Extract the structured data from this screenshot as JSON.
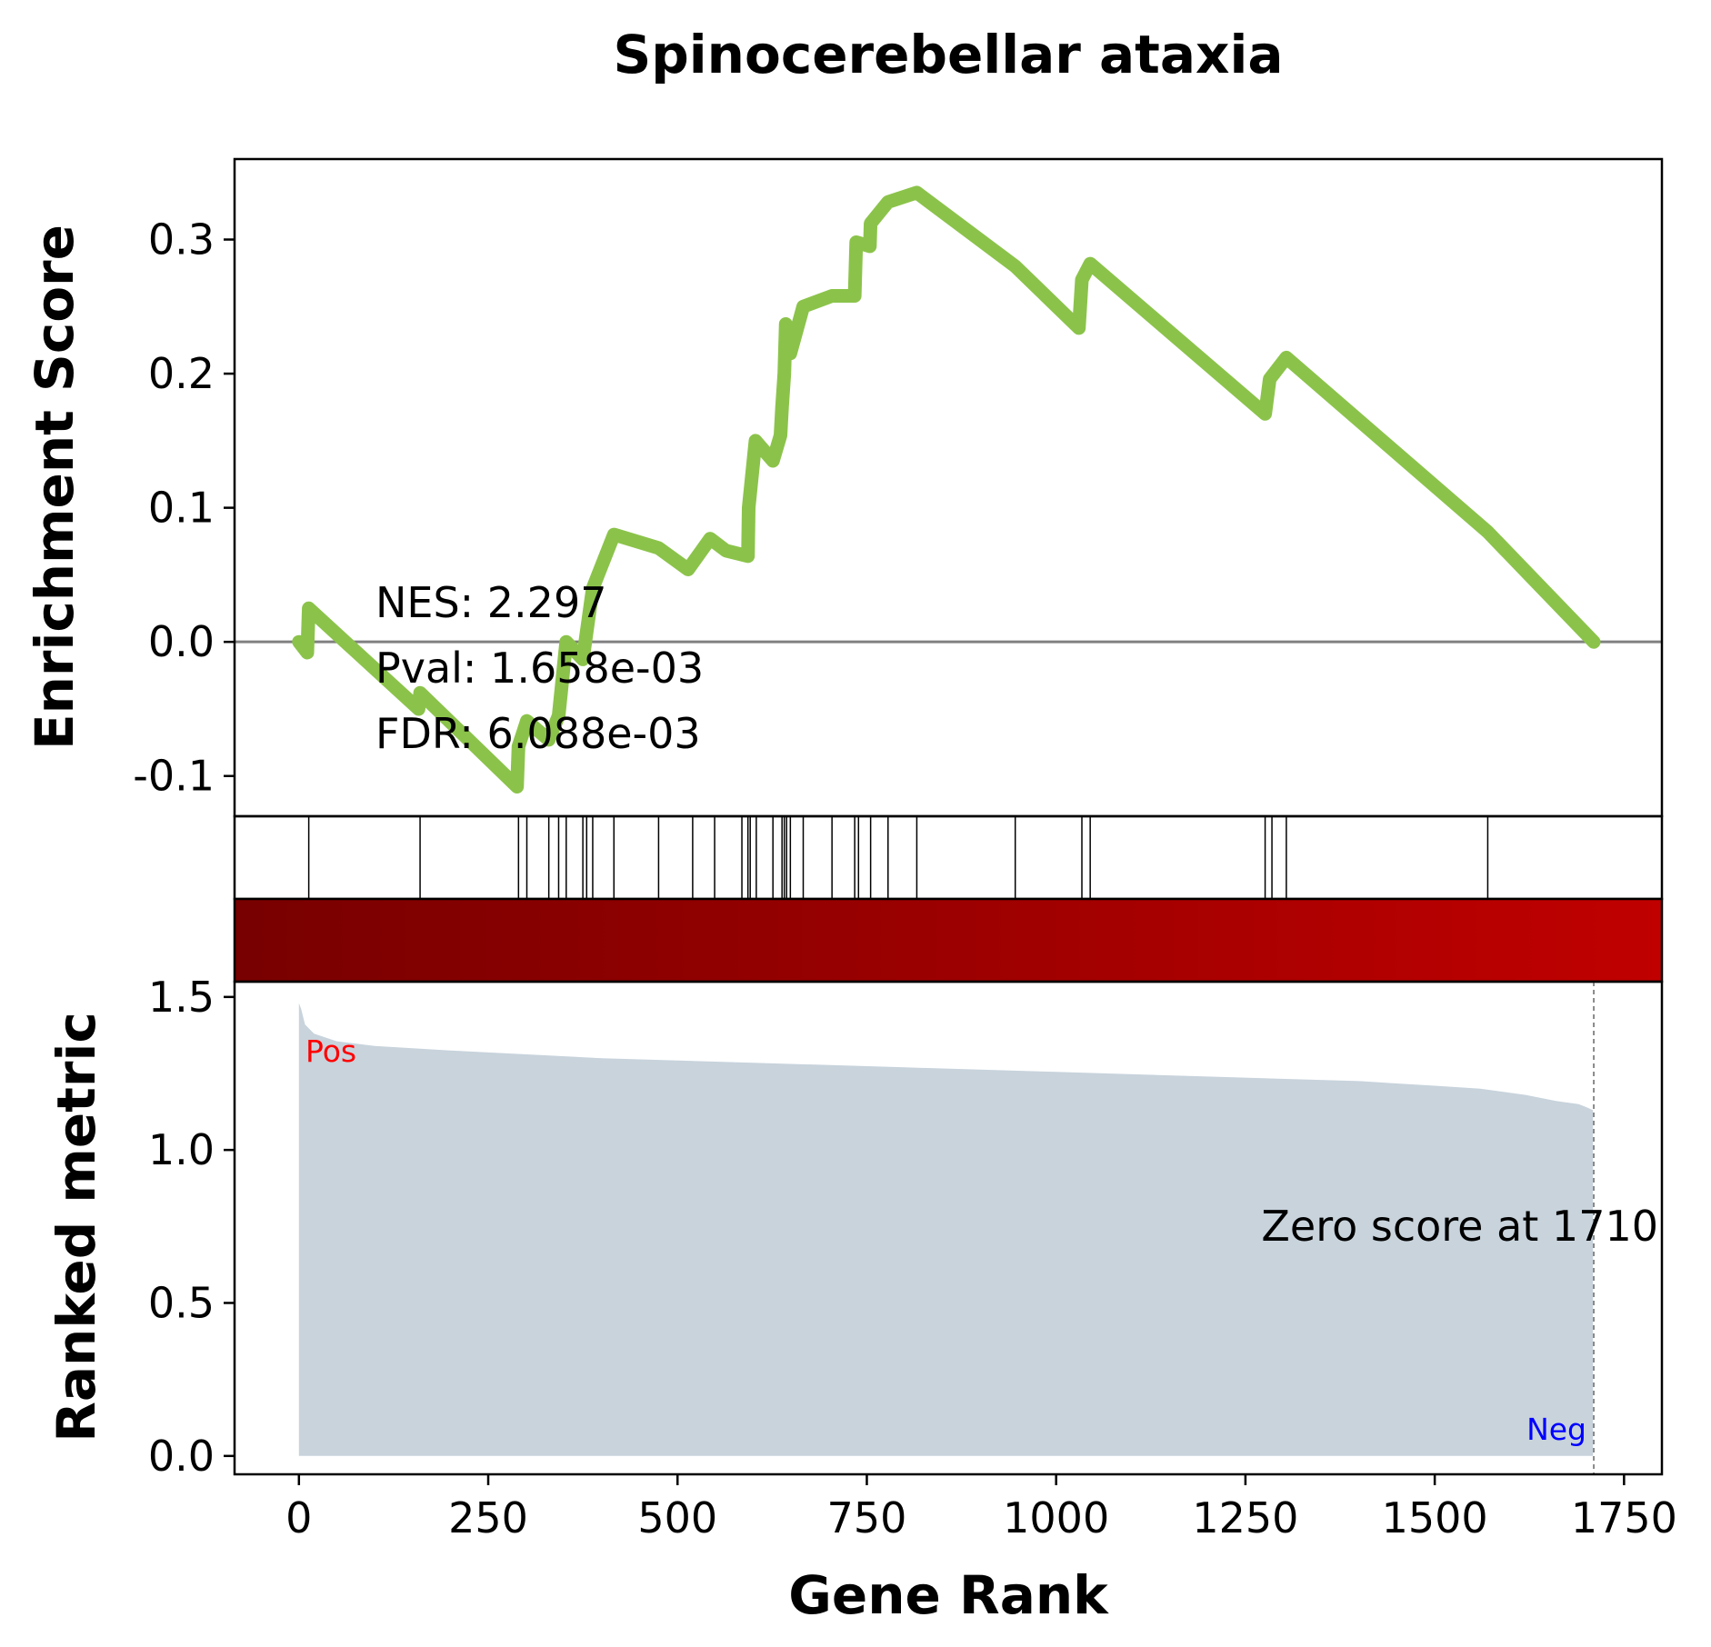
{
  "chart_data": {
    "type": "line",
    "title": "Spinocerebellar ataxia",
    "xlabel": "Gene Rank",
    "es_panel": {
      "ylabel": "Enrichment Score",
      "ylim": [
        -0.13,
        0.36
      ],
      "yticks": [
        0.3,
        0.2,
        0.1,
        0.0,
        -0.1
      ],
      "ytick_labels": [
        "0.3",
        "0.2",
        "0.1",
        "0.0",
        "-0.1"
      ],
      "line_color": "#8bc34a",
      "zero_line_color": "#808080",
      "running_es": {
        "x": [
          0,
          11,
          13,
          158,
          160,
          288,
          290,
          301,
          330,
          343,
          353,
          375,
          388,
          416,
          475,
          514,
          543,
          564,
          593,
          594,
          603,
          626,
          636,
          638,
          641,
          643,
          649,
          666,
          704,
          734,
          736,
          754,
          755,
          778,
          816,
          946,
          1030,
          1034,
          1045,
          1276,
          1282,
          1304,
          1570,
          1710
        ],
        "es": [
          0.0,
          -0.008,
          0.025,
          -0.05,
          -0.038,
          -0.108,
          -0.078,
          -0.059,
          -0.073,
          -0.055,
          0.0,
          -0.013,
          0.04,
          0.08,
          0.07,
          0.054,
          0.077,
          0.068,
          0.064,
          0.1,
          0.15,
          0.135,
          0.154,
          0.175,
          0.2,
          0.237,
          0.215,
          0.25,
          0.258,
          0.258,
          0.298,
          0.295,
          0.312,
          0.328,
          0.335,
          0.28,
          0.234,
          0.27,
          0.282,
          0.17,
          0.196,
          0.212,
          0.082,
          0.0
        ],
        "comment_hits": "step rises occur at the hit ranks listed in hits"
      },
      "annotation": {
        "nes": "NES: 2.297",
        "pval": "Pval: 1.658e-03",
        "fdr": "FDR: 6.088e-03"
      }
    },
    "hits": [
      13,
      160,
      290,
      301,
      330,
      343,
      353,
      375,
      380,
      388,
      416,
      475,
      520,
      549,
      585,
      593,
      596,
      604,
      626,
      638,
      641,
      644,
      649,
      666,
      704,
      734,
      739,
      755,
      778,
      816,
      946,
      1034,
      1045,
      1276,
      1285,
      1304,
      1570
    ],
    "ranked_metric": {
      "ylabel": "Ranked metric",
      "ylim": [
        -0.06,
        1.55
      ],
      "yticks": [
        1.5,
        1.0,
        0.5,
        0.0
      ],
      "ytick_labels": [
        "1.5",
        "1.0",
        "0.5",
        "0.0"
      ],
      "fill_color": "#c8d3dc",
      "x": [
        0,
        3,
        8,
        20,
        50,
        100,
        200,
        400,
        600,
        800,
        1000,
        1200,
        1400,
        1500,
        1560,
        1620,
        1660,
        1690,
        1700,
        1709
      ],
      "y": [
        1.48,
        1.46,
        1.41,
        1.38,
        1.355,
        1.34,
        1.325,
        1.3,
        1.285,
        1.27,
        1.255,
        1.24,
        1.225,
        1.21,
        1.2,
        1.18,
        1.16,
        1.15,
        1.14,
        1.13
      ],
      "pos_label": "Pos",
      "neg_label": "Neg",
      "pos_color": "#ff0000",
      "neg_color": "#0000ff",
      "zero_score_text": "Zero score at 1710",
      "zero_score_rank": 1710
    },
    "heatmap": {
      "color_start": "#780000",
      "color_end": "#c00000"
    },
    "xlim": [
      -85,
      1800
    ],
    "xticks": [
      0,
      250,
      500,
      750,
      1000,
      1250,
      1500,
      1750
    ],
    "xtick_labels": [
      "0",
      "250",
      "500",
      "750",
      "1000",
      "1250",
      "1500",
      "1750"
    ]
  }
}
